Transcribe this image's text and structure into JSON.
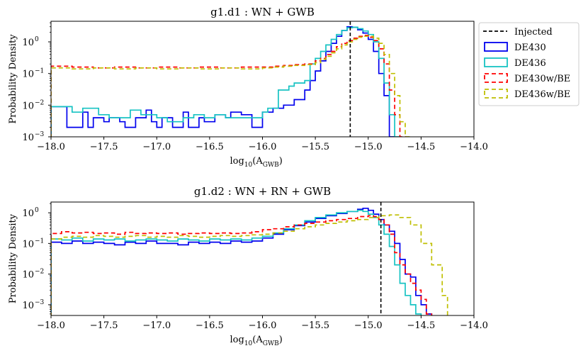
{
  "colors": {
    "injected": "#000000",
    "DE430": "#0000ee",
    "DE436": "#17c3c3",
    "DE430wBE": "#ff0000",
    "DE436wBE": "#bfbf00"
  },
  "legend": {
    "entries": [
      {
        "label": "Injected",
        "style": "dashed",
        "color_key": "injected"
      },
      {
        "label": "DE430",
        "style": "solid",
        "color_key": "DE430"
      },
      {
        "label": "DE436",
        "style": "solid",
        "color_key": "DE436"
      },
      {
        "label": "DE430w/BE",
        "style": "dashed",
        "color_key": "DE430wBE"
      },
      {
        "label": "DE436w/BE",
        "style": "dashed",
        "color_key": "DE436wBE"
      }
    ],
    "placement": "right of top panel"
  },
  "chart_data": [
    {
      "type": "step-histogram",
      "title": "g1.d1 : WN + GWB",
      "xlabel_main": "log",
      "xlabel_sub": "10",
      "xlabel_arg_open": "(A",
      "xlabel_arg_sub": "GWB",
      "xlabel_arg_close": ")",
      "ylabel": "Probability Density",
      "xlim": [
        -18.0,
        -14.0
      ],
      "ylim_log10": [
        -3,
        0.65
      ],
      "xticks": [
        -18.0,
        -17.5,
        -17.0,
        -16.5,
        -16.0,
        -15.5,
        -15.0,
        -14.5,
        -14.0
      ],
      "xtick_labels": [
        "−18.0",
        "−17.5",
        "−17.0",
        "−16.5",
        "−16.0",
        "−15.5",
        "−15.0",
        "−14.5",
        "−14.0"
      ],
      "yticks_exp": [
        -3,
        -2,
        -1,
        0
      ],
      "ytick_base": "10",
      "ytick_exps": [
        "−3",
        "−2",
        "−1",
        "0"
      ],
      "injected": -15.17,
      "series": [
        {
          "name": "DE430",
          "color_key": "DE430",
          "dashed": false,
          "edges": [
            -18.0,
            -17.85,
            -17.8,
            -17.7,
            -17.65,
            -17.6,
            -17.5,
            -17.45,
            -17.35,
            -17.3,
            -17.2,
            -17.1,
            -17.05,
            -17.0,
            -16.95,
            -16.85,
            -16.75,
            -16.7,
            -16.6,
            -16.55,
            -16.45,
            -16.35,
            -16.3,
            -16.2,
            -16.1,
            -16.0,
            -15.9,
            -15.8,
            -15.7,
            -15.6,
            -15.55,
            -15.5,
            -15.45,
            -15.4,
            -15.35,
            -15.3,
            -15.25,
            -15.2,
            -15.15,
            -15.1,
            -15.05,
            -15.0,
            -14.95,
            -14.9,
            -14.85,
            -14.8,
            -14.75
          ],
          "values": [
            0.009,
            0.002,
            0.002,
            0.006,
            0.002,
            0.004,
            0.003,
            0.004,
            0.003,
            0.002,
            0.004,
            0.007,
            0.003,
            0.002,
            0.004,
            0.002,
            0.006,
            0.002,
            0.004,
            0.003,
            0.005,
            0.004,
            0.006,
            0.005,
            0.002,
            0.006,
            0.008,
            0.01,
            0.015,
            0.03,
            0.06,
            0.12,
            0.25,
            0.5,
            0.9,
            1.5,
            2.3,
            3.0,
            2.9,
            2.4,
            1.9,
            1.2,
            0.5,
            0.1,
            0.02,
            0.001
          ]
        },
        {
          "name": "DE436",
          "color_key": "DE436",
          "dashed": false,
          "edges": [
            -18.0,
            -17.85,
            -17.8,
            -17.7,
            -17.55,
            -17.45,
            -17.35,
            -17.25,
            -17.15,
            -17.0,
            -16.9,
            -16.75,
            -16.65,
            -16.55,
            -16.45,
            -16.35,
            -16.25,
            -16.15,
            -16.0,
            -15.95,
            -15.85,
            -15.75,
            -15.7,
            -15.6,
            -15.55,
            -15.5,
            -15.45,
            -15.4,
            -15.35,
            -15.3,
            -15.25,
            -15.2,
            -15.15,
            -15.1,
            -15.05,
            -15.0,
            -14.95,
            -14.9,
            -14.85,
            -14.8,
            -14.75,
            -14.7
          ],
          "values": [
            0.009,
            0.009,
            0.006,
            0.008,
            0.005,
            0.004,
            0.004,
            0.007,
            0.005,
            0.004,
            0.003,
            0.004,
            0.005,
            0.004,
            0.005,
            0.004,
            0.004,
            0.004,
            0.006,
            0.008,
            0.03,
            0.04,
            0.05,
            0.06,
            0.2,
            0.3,
            0.5,
            0.8,
            1.2,
            1.7,
            2.3,
            2.8,
            2.9,
            2.6,
            2.2,
            1.7,
            1.0,
            0.3,
            0.05,
            0.005,
            0.001
          ]
        },
        {
          "name": "DE430w/BE",
          "color_key": "DE430wBE",
          "dashed": true,
          "edges": [
            -18.0,
            -17.8,
            -17.6,
            -17.4,
            -17.2,
            -17.0,
            -16.8,
            -16.6,
            -16.4,
            -16.2,
            -16.0,
            -15.9,
            -15.8,
            -15.7,
            -15.6,
            -15.5,
            -15.45,
            -15.4,
            -15.35,
            -15.3,
            -15.25,
            -15.2,
            -15.15,
            -15.1,
            -15.05,
            -15.0,
            -14.95,
            -14.9,
            -14.85,
            -14.8,
            -14.75,
            -14.7,
            -14.65
          ],
          "values": [
            0.17,
            0.16,
            0.15,
            0.16,
            0.15,
            0.16,
            0.15,
            0.16,
            0.15,
            0.16,
            0.16,
            0.17,
            0.18,
            0.19,
            0.2,
            0.25,
            0.3,
            0.4,
            0.5,
            0.7,
            0.9,
            1.1,
            1.3,
            1.5,
            1.6,
            1.4,
            1.1,
            0.6,
            0.2,
            0.03,
            0.005,
            0.001
          ]
        },
        {
          "name": "DE436w/BE",
          "color_key": "DE436wBE",
          "dashed": true,
          "edges": [
            -18.0,
            -17.8,
            -17.6,
            -17.4,
            -17.2,
            -17.0,
            -16.8,
            -16.6,
            -16.4,
            -16.2,
            -16.0,
            -15.9,
            -15.8,
            -15.7,
            -15.6,
            -15.5,
            -15.45,
            -15.4,
            -15.35,
            -15.3,
            -15.25,
            -15.2,
            -15.15,
            -15.1,
            -15.05,
            -15.0,
            -14.95,
            -14.9,
            -14.85,
            -14.8,
            -14.75,
            -14.7,
            -14.65,
            -14.6
          ],
          "values": [
            0.15,
            0.14,
            0.15,
            0.14,
            0.15,
            0.14,
            0.15,
            0.14,
            0.15,
            0.14,
            0.15,
            0.16,
            0.17,
            0.18,
            0.19,
            0.22,
            0.28,
            0.35,
            0.45,
            0.6,
            0.8,
            1.0,
            1.2,
            1.4,
            1.5,
            1.5,
            1.3,
            0.9,
            0.4,
            0.1,
            0.02,
            0.003,
            0.001
          ]
        }
      ]
    },
    {
      "type": "step-histogram",
      "title": "g1.d2 : WN + RN + GWB",
      "xlabel_main": "log",
      "xlabel_sub": "10",
      "xlabel_arg_open": "(A",
      "xlabel_arg_sub": "GWB",
      "xlabel_arg_close": ")",
      "ylabel": "Probability Density",
      "xlim": [
        -18.0,
        -14.0
      ],
      "ylim_log10": [
        -3.35,
        0.35
      ],
      "xticks": [
        -18.0,
        -17.5,
        -17.0,
        -16.5,
        -16.0,
        -15.5,
        -15.0,
        -14.5,
        -14.0
      ],
      "xtick_labels": [
        "−18.0",
        "−17.5",
        "−17.0",
        "−16.5",
        "−16.0",
        "−15.5",
        "−15.0",
        "−14.5",
        "−14.0"
      ],
      "yticks_exp": [
        -3,
        -2,
        -1,
        0
      ],
      "ytick_base": "10",
      "ytick_exps": [
        "−3",
        "−2",
        "−1",
        "0"
      ],
      "injected": -14.88,
      "series": [
        {
          "name": "DE430",
          "color_key": "DE430",
          "dashed": false,
          "edges": [
            -18.0,
            -17.9,
            -17.8,
            -17.7,
            -17.6,
            -17.5,
            -17.4,
            -17.3,
            -17.2,
            -17.1,
            -17.0,
            -16.9,
            -16.8,
            -16.7,
            -16.6,
            -16.5,
            -16.4,
            -16.3,
            -16.2,
            -16.1,
            -16.0,
            -15.9,
            -15.8,
            -15.7,
            -15.6,
            -15.5,
            -15.4,
            -15.3,
            -15.2,
            -15.1,
            -15.05,
            -15.0,
            -14.95,
            -14.9,
            -14.85,
            -14.8,
            -14.75,
            -14.7,
            -14.65,
            -14.6,
            -14.55,
            -14.5,
            -14.45,
            -14.4
          ],
          "values": [
            0.11,
            0.1,
            0.12,
            0.1,
            0.11,
            0.1,
            0.09,
            0.11,
            0.1,
            0.12,
            0.1,
            0.1,
            0.09,
            0.11,
            0.1,
            0.11,
            0.1,
            0.12,
            0.11,
            0.12,
            0.15,
            0.2,
            0.28,
            0.38,
            0.5,
            0.65,
            0.8,
            0.95,
            1.1,
            1.3,
            1.4,
            1.2,
            0.9,
            0.6,
            0.4,
            0.25,
            0.1,
            0.03,
            0.01,
            0.008,
            0.002,
            0.001,
            0.0005
          ]
        },
        {
          "name": "DE436",
          "color_key": "DE436",
          "dashed": false,
          "edges": [
            -18.0,
            -17.9,
            -17.8,
            -17.7,
            -17.6,
            -17.5,
            -17.4,
            -17.3,
            -17.2,
            -17.1,
            -17.0,
            -16.9,
            -16.8,
            -16.7,
            -16.6,
            -16.5,
            -16.4,
            -16.3,
            -16.2,
            -16.1,
            -16.0,
            -15.9,
            -15.8,
            -15.7,
            -15.6,
            -15.5,
            -15.4,
            -15.3,
            -15.2,
            -15.1,
            -15.05,
            -15.0,
            -14.95,
            -14.9,
            -14.85,
            -14.8,
            -14.75,
            -14.7,
            -14.65,
            -14.6,
            -14.55,
            -14.5
          ],
          "values": [
            0.14,
            0.13,
            0.15,
            0.12,
            0.14,
            0.13,
            0.14,
            0.12,
            0.13,
            0.14,
            0.13,
            0.12,
            0.14,
            0.13,
            0.12,
            0.14,
            0.13,
            0.14,
            0.13,
            0.15,
            0.17,
            0.22,
            0.3,
            0.4,
            0.55,
            0.7,
            0.85,
            1.0,
            1.1,
            1.2,
            1.1,
            0.9,
            0.7,
            0.4,
            0.2,
            0.08,
            0.02,
            0.005,
            0.002,
            0.001,
            0.0005
          ]
        },
        {
          "name": "DE430w/BE",
          "color_key": "DE430wBE",
          "dashed": true,
          "edges": [
            -18.0,
            -17.9,
            -17.8,
            -17.7,
            -17.6,
            -17.5,
            -17.4,
            -17.3,
            -17.2,
            -17.1,
            -17.0,
            -16.9,
            -16.8,
            -16.7,
            -16.6,
            -16.5,
            -16.4,
            -16.3,
            -16.2,
            -16.1,
            -16.0,
            -15.9,
            -15.8,
            -15.7,
            -15.6,
            -15.5,
            -15.4,
            -15.3,
            -15.2,
            -15.1,
            -15.0,
            -14.95,
            -14.9,
            -14.85,
            -14.8,
            -14.75,
            -14.7,
            -14.65,
            -14.6,
            -14.55,
            -14.5,
            -14.45,
            -14.4
          ],
          "values": [
            0.21,
            0.24,
            0.22,
            0.23,
            0.21,
            0.22,
            0.2,
            0.23,
            0.21,
            0.22,
            0.21,
            0.22,
            0.2,
            0.21,
            0.22,
            0.21,
            0.22,
            0.21,
            0.22,
            0.24,
            0.28,
            0.3,
            0.35,
            0.4,
            0.45,
            0.5,
            0.55,
            0.6,
            0.65,
            0.75,
            0.8,
            0.75,
            0.6,
            0.4,
            0.2,
            0.05,
            0.02,
            0.01,
            0.005,
            0.003,
            0.0015,
            0.0005
          ]
        },
        {
          "name": "DE436w/BE",
          "color_key": "DE436wBE",
          "dashed": true,
          "edges": [
            -18.0,
            -17.9,
            -17.8,
            -17.7,
            -17.6,
            -17.5,
            -17.4,
            -17.3,
            -17.2,
            -17.1,
            -17.0,
            -16.9,
            -16.8,
            -16.7,
            -16.6,
            -16.5,
            -16.4,
            -16.3,
            -16.2,
            -16.1,
            -16.0,
            -15.9,
            -15.8,
            -15.7,
            -15.6,
            -15.5,
            -15.4,
            -15.3,
            -15.2,
            -15.1,
            -15.0,
            -14.9,
            -14.8,
            -14.7,
            -14.6,
            -14.5,
            -14.4,
            -14.3,
            -14.25
          ],
          "values": [
            0.14,
            0.16,
            0.17,
            0.16,
            0.18,
            0.17,
            0.16,
            0.17,
            0.18,
            0.16,
            0.17,
            0.16,
            0.18,
            0.17,
            0.16,
            0.17,
            0.18,
            0.17,
            0.18,
            0.19,
            0.2,
            0.22,
            0.25,
            0.3,
            0.35,
            0.4,
            0.45,
            0.5,
            0.55,
            0.6,
            0.7,
            0.8,
            0.85,
            0.7,
            0.4,
            0.1,
            0.02,
            0.002
          ]
        }
      ]
    }
  ]
}
